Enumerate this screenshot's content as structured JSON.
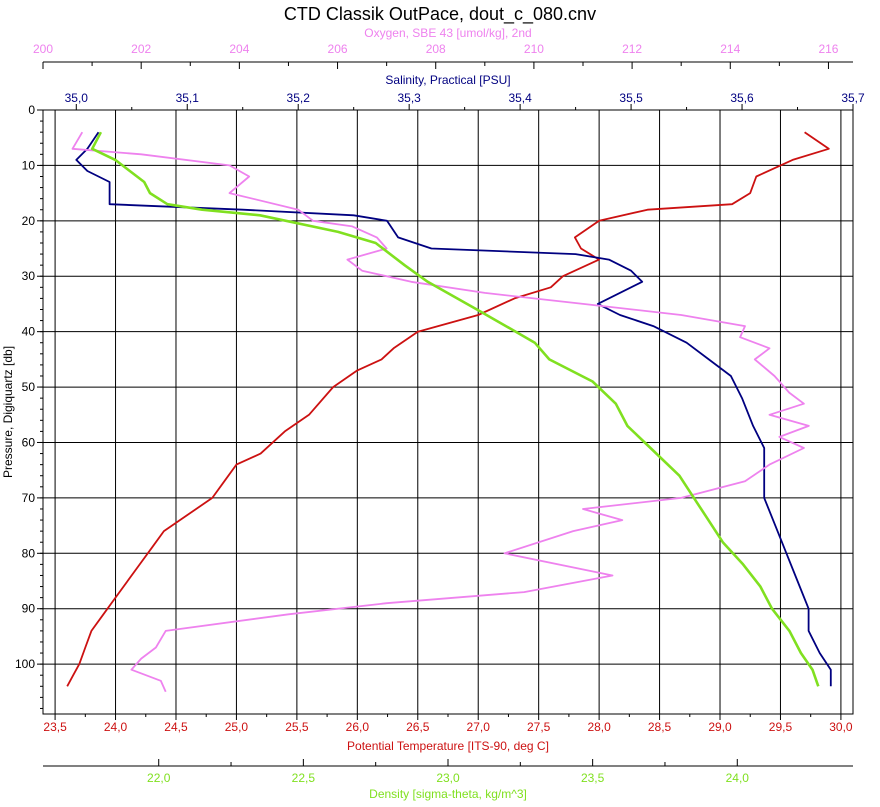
{
  "chart_data": {
    "type": "line",
    "title": "CTD Classik OutPace, dout_c_080.cnv",
    "y_axis": {
      "label": "Pressure, Digiquartz [db]",
      "range": [
        0,
        109
      ],
      "inverted": true,
      "ticks": [
        0,
        10,
        20,
        30,
        40,
        50,
        60,
        70,
        80,
        90,
        100
      ],
      "tick_labels": [
        "0",
        "10",
        "20",
        "30",
        "40",
        "50",
        "60",
        "70",
        "80",
        "90",
        "100"
      ]
    },
    "x_axes": [
      {
        "id": "oxygen",
        "label": "Oxygen, SBE 43 [umol/kg], 2nd",
        "position": "top-outer",
        "color": "#ee82ee",
        "range": [
          200,
          216.5
        ],
        "ticks": [
          200,
          202,
          204,
          206,
          208,
          210,
          212,
          214,
          216
        ],
        "tick_labels": [
          "200",
          "202",
          "204",
          "206",
          "208",
          "210",
          "212",
          "214",
          "216"
        ]
      },
      {
        "id": "salinity",
        "label": "Salinity, Practical [PSU]",
        "position": "top-inner",
        "color": "#000080",
        "range": [
          34.97,
          35.7
        ],
        "ticks": [
          35.0,
          35.1,
          35.2,
          35.3,
          35.4,
          35.5,
          35.6,
          35.7
        ],
        "tick_labels": [
          "35,0",
          "35,1",
          "35,2",
          "35,3",
          "35,4",
          "35,5",
          "35,6",
          "35,7"
        ]
      },
      {
        "id": "temperature",
        "label": "Potential Temperature [ITS-90, deg C]",
        "position": "bottom-inner",
        "color": "#cc1111",
        "range": [
          23.4,
          30.1
        ],
        "ticks": [
          23.5,
          24.0,
          24.5,
          25.0,
          25.5,
          26.0,
          26.5,
          27.0,
          27.5,
          28.0,
          28.5,
          29.0,
          29.5,
          30.0
        ],
        "tick_labels": [
          "23,5",
          "24,0",
          "24,5",
          "25,0",
          "25,5",
          "26,0",
          "26,5",
          "27,0",
          "27,5",
          "28,0",
          "28,5",
          "29,0",
          "29,5",
          "30,0"
        ]
      },
      {
        "id": "density",
        "label": "Density [sigma-theta, kg/m^3]",
        "position": "bottom-outer",
        "color": "#80e020",
        "range": [
          21.6,
          24.4
        ],
        "ticks": [
          22.0,
          22.5,
          23.0,
          23.5,
          24.0
        ],
        "tick_labels": [
          "22,0",
          "22,5",
          "23,0",
          "23,5",
          "24,0"
        ]
      }
    ],
    "grid": true,
    "series": [
      {
        "axis": "temperature",
        "color": "#cc1111",
        "values": [
          {
            "x": 29.7,
            "y": 4
          },
          {
            "x": 29.9,
            "y": 7
          },
          {
            "x": 29.6,
            "y": 9
          },
          {
            "x": 29.3,
            "y": 12
          },
          {
            "x": 29.25,
            "y": 15
          },
          {
            "x": 29.1,
            "y": 17
          },
          {
            "x": 28.4,
            "y": 18
          },
          {
            "x": 28.0,
            "y": 20
          },
          {
            "x": 27.8,
            "y": 23
          },
          {
            "x": 27.85,
            "y": 25
          },
          {
            "x": 28.0,
            "y": 27
          },
          {
            "x": 27.7,
            "y": 30
          },
          {
            "x": 27.6,
            "y": 32
          },
          {
            "x": 27.3,
            "y": 34
          },
          {
            "x": 27.0,
            "y": 37
          },
          {
            "x": 26.5,
            "y": 40
          },
          {
            "x": 26.3,
            "y": 43
          },
          {
            "x": 26.2,
            "y": 45
          },
          {
            "x": 26.0,
            "y": 47
          },
          {
            "x": 25.8,
            "y": 50
          },
          {
            "x": 25.6,
            "y": 55
          },
          {
            "x": 25.4,
            "y": 58
          },
          {
            "x": 25.2,
            "y": 62
          },
          {
            "x": 25.0,
            "y": 64
          },
          {
            "x": 24.9,
            "y": 67
          },
          {
            "x": 24.8,
            "y": 70
          },
          {
            "x": 24.6,
            "y": 73
          },
          {
            "x": 24.4,
            "y": 76
          },
          {
            "x": 24.3,
            "y": 79
          },
          {
            "x": 24.2,
            "y": 82
          },
          {
            "x": 24.1,
            "y": 85
          },
          {
            "x": 24.0,
            "y": 88
          },
          {
            "x": 23.9,
            "y": 91
          },
          {
            "x": 23.8,
            "y": 94
          },
          {
            "x": 23.75,
            "y": 97
          },
          {
            "x": 23.7,
            "y": 100
          },
          {
            "x": 23.65,
            "y": 102
          },
          {
            "x": 23.6,
            "y": 104
          }
        ]
      },
      {
        "axis": "salinity",
        "color": "#000080",
        "values": [
          {
            "x": 35.02,
            "y": 4
          },
          {
            "x": 35.01,
            "y": 7
          },
          {
            "x": 35.0,
            "y": 9
          },
          {
            "x": 35.01,
            "y": 11
          },
          {
            "x": 35.03,
            "y": 13
          },
          {
            "x": 35.03,
            "y": 17
          },
          {
            "x": 35.15,
            "y": 18
          },
          {
            "x": 35.25,
            "y": 19
          },
          {
            "x": 35.28,
            "y": 20
          },
          {
            "x": 35.29,
            "y": 23
          },
          {
            "x": 35.32,
            "y": 25
          },
          {
            "x": 35.45,
            "y": 26
          },
          {
            "x": 35.48,
            "y": 27
          },
          {
            "x": 35.5,
            "y": 29
          },
          {
            "x": 35.51,
            "y": 31
          },
          {
            "x": 35.47,
            "y": 35
          },
          {
            "x": 35.49,
            "y": 37
          },
          {
            "x": 35.52,
            "y": 39
          },
          {
            "x": 35.55,
            "y": 42
          },
          {
            "x": 35.57,
            "y": 45
          },
          {
            "x": 35.59,
            "y": 48
          },
          {
            "x": 35.6,
            "y": 52
          },
          {
            "x": 35.61,
            "y": 57
          },
          {
            "x": 35.62,
            "y": 61
          },
          {
            "x": 35.62,
            "y": 66
          },
          {
            "x": 35.62,
            "y": 70
          },
          {
            "x": 35.63,
            "y": 75
          },
          {
            "x": 35.64,
            "y": 80
          },
          {
            "x": 35.65,
            "y": 85
          },
          {
            "x": 35.66,
            "y": 90
          },
          {
            "x": 35.66,
            "y": 94
          },
          {
            "x": 35.67,
            "y": 98
          },
          {
            "x": 35.68,
            "y": 101
          },
          {
            "x": 35.68,
            "y": 104
          }
        ]
      },
      {
        "axis": "oxygen",
        "color": "#ee82ee",
        "values": [
          {
            "x": 200.8,
            "y": 4
          },
          {
            "x": 200.6,
            "y": 7
          },
          {
            "x": 202.0,
            "y": 8
          },
          {
            "x": 203.8,
            "y": 10
          },
          {
            "x": 204.2,
            "y": 12
          },
          {
            "x": 203.8,
            "y": 15
          },
          {
            "x": 205.2,
            "y": 18
          },
          {
            "x": 205.5,
            "y": 20
          },
          {
            "x": 206.3,
            "y": 21
          },
          {
            "x": 206.8,
            "y": 23
          },
          {
            "x": 207.0,
            "y": 25
          },
          {
            "x": 206.2,
            "y": 27
          },
          {
            "x": 206.5,
            "y": 29
          },
          {
            "x": 207.5,
            "y": 31
          },
          {
            "x": 209.0,
            "y": 33
          },
          {
            "x": 211.0,
            "y": 35
          },
          {
            "x": 213.0,
            "y": 37
          },
          {
            "x": 214.3,
            "y": 39
          },
          {
            "x": 214.2,
            "y": 41
          },
          {
            "x": 214.8,
            "y": 43
          },
          {
            "x": 214.5,
            "y": 45
          },
          {
            "x": 214.9,
            "y": 48
          },
          {
            "x": 215.2,
            "y": 51
          },
          {
            "x": 215.5,
            "y": 53
          },
          {
            "x": 214.8,
            "y": 55
          },
          {
            "x": 215.6,
            "y": 57
          },
          {
            "x": 215.0,
            "y": 59
          },
          {
            "x": 215.5,
            "y": 61
          },
          {
            "x": 214.8,
            "y": 64
          },
          {
            "x": 214.3,
            "y": 67
          },
          {
            "x": 213.0,
            "y": 70
          },
          {
            "x": 211.0,
            "y": 72
          },
          {
            "x": 211.8,
            "y": 74
          },
          {
            "x": 210.8,
            "y": 76
          },
          {
            "x": 209.4,
            "y": 80
          },
          {
            "x": 211.6,
            "y": 84
          },
          {
            "x": 209.8,
            "y": 87
          },
          {
            "x": 207.0,
            "y": 89
          },
          {
            "x": 205.0,
            "y": 91
          },
          {
            "x": 202.5,
            "y": 94
          },
          {
            "x": 202.3,
            "y": 97
          },
          {
            "x": 202.0,
            "y": 99
          },
          {
            "x": 201.8,
            "y": 101
          },
          {
            "x": 202.4,
            "y": 103
          },
          {
            "x": 202.5,
            "y": 105
          }
        ]
      },
      {
        "axis": "density",
        "color": "#80e020",
        "values": [
          {
            "x": 21.8,
            "y": 4
          },
          {
            "x": 21.77,
            "y": 7
          },
          {
            "x": 21.85,
            "y": 9
          },
          {
            "x": 21.9,
            "y": 11
          },
          {
            "x": 21.95,
            "y": 13
          },
          {
            "x": 21.97,
            "y": 15
          },
          {
            "x": 22.03,
            "y": 17
          },
          {
            "x": 22.15,
            "y": 18
          },
          {
            "x": 22.35,
            "y": 19
          },
          {
            "x": 22.62,
            "y": 22
          },
          {
            "x": 22.75,
            "y": 24
          },
          {
            "x": 22.85,
            "y": 28
          },
          {
            "x": 22.93,
            "y": 31
          },
          {
            "x": 23.1,
            "y": 36
          },
          {
            "x": 23.2,
            "y": 39
          },
          {
            "x": 23.3,
            "y": 42
          },
          {
            "x": 23.35,
            "y": 45
          },
          {
            "x": 23.5,
            "y": 49
          },
          {
            "x": 23.58,
            "y": 53
          },
          {
            "x": 23.62,
            "y": 57
          },
          {
            "x": 23.7,
            "y": 61
          },
          {
            "x": 23.8,
            "y": 66
          },
          {
            "x": 23.85,
            "y": 70
          },
          {
            "x": 23.9,
            "y": 74
          },
          {
            "x": 23.95,
            "y": 78
          },
          {
            "x": 24.02,
            "y": 82
          },
          {
            "x": 24.08,
            "y": 86
          },
          {
            "x": 24.12,
            "y": 90
          },
          {
            "x": 24.18,
            "y": 94
          },
          {
            "x": 24.22,
            "y": 98
          },
          {
            "x": 24.26,
            "y": 101
          },
          {
            "x": 24.28,
            "y": 104
          }
        ]
      }
    ]
  }
}
